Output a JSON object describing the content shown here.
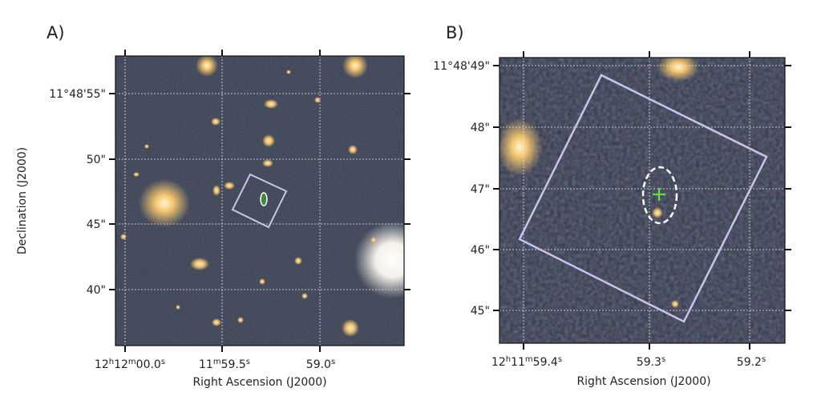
{
  "figure": {
    "panel_a": {
      "label": "A)",
      "x_axis_label": "Right Ascension (J2000)",
      "y_axis_label": "Declination (J2000)",
      "x_ticks": [
        {
          "main": "12",
          "sup1": "h",
          "mid": "12",
          "sup2": "m",
          "tail": "00.0",
          "sup3": "s"
        },
        {
          "main": "11",
          "sup1": "m",
          "mid": "59.5",
          "sup2": "s"
        },
        {
          "main": "59.0",
          "sup1": "s"
        }
      ],
      "y_ticks": [
        "11°48'55\"",
        "50\"",
        "45\"",
        "40\""
      ]
    },
    "panel_b": {
      "label": "B)",
      "x_axis_label": "Right Ascension (J2000)",
      "x_ticks": [
        {
          "main": "12",
          "sup1": "h",
          "mid": "11",
          "sup2": "m",
          "tail": "59.4",
          "sup3": "s"
        },
        {
          "main": "59.3",
          "sup1": "s"
        },
        {
          "main": "59.2",
          "sup1": "s"
        }
      ],
      "y_ticks": [
        "11°48'49\"",
        "48\"",
        "47\"",
        "46\"",
        "45\""
      ]
    },
    "colors": {
      "sky": "#2e3744",
      "box": "#c8c4ee",
      "ellipse": "#ffffff",
      "cross": "#66dd44",
      "grid": "#e6e6e6"
    }
  }
}
